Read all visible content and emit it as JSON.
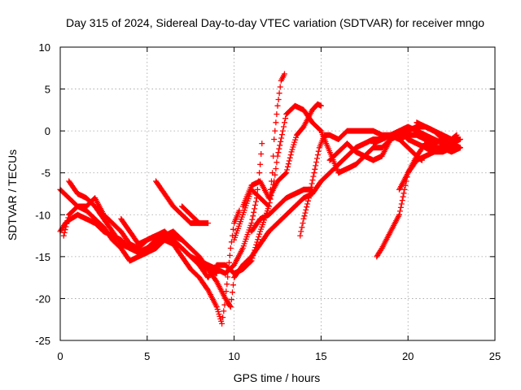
{
  "chart_data": {
    "type": "scatter",
    "title": "Day 315 of 2024, Sidereal Day-to-day VTEC variation (SDTVAR) for receiver mngo",
    "xlabel": "GPS time / hours",
    "ylabel": "SDTVAR / TECUs",
    "xlim": [
      0,
      25
    ],
    "ylim": [
      -25,
      10
    ],
    "xticks": [
      0,
      5,
      10,
      15,
      20,
      25
    ],
    "yticks": [
      -25,
      -20,
      -15,
      -10,
      -5,
      0,
      5,
      10
    ],
    "grid": true,
    "marker": "+",
    "color": "#ff0000",
    "tracks": [
      [
        [
          0.0,
          -12.0
        ],
        [
          0.3,
          -11.0
        ],
        [
          0.6,
          -10.5
        ],
        [
          1.0,
          -10.0
        ],
        [
          1.5,
          -10.5
        ],
        [
          2.0,
          -11.0
        ],
        [
          2.5,
          -12.0
        ],
        [
          3.0,
          -12.5
        ],
        [
          3.5,
          -13.0
        ],
        [
          4.0,
          -14.0
        ],
        [
          4.5,
          -14.5
        ],
        [
          5.0,
          -14.0
        ],
        [
          5.5,
          -13.5
        ],
        [
          6.0,
          -13.0
        ],
        [
          6.5,
          -12.5
        ],
        [
          7.0,
          -13.0
        ],
        [
          7.5,
          -14.0
        ],
        [
          8.0,
          -15.0
        ],
        [
          8.5,
          -16.5
        ],
        [
          9.0,
          -18.0
        ],
        [
          9.5,
          -20.0
        ],
        [
          9.8,
          -21.0
        ],
        [
          10.0,
          -17.5
        ],
        [
          10.5,
          -16.0
        ],
        [
          11.0,
          -15.0
        ],
        [
          11.5,
          -13.5
        ],
        [
          12.0,
          -12.0
        ],
        [
          12.5,
          -11.0
        ],
        [
          13.0,
          -10.0
        ],
        [
          13.5,
          -9.0
        ],
        [
          14.0,
          -8.0
        ],
        [
          14.5,
          -7.5
        ],
        [
          15.0,
          -6.0
        ],
        [
          15.5,
          -5.0
        ],
        [
          16.0,
          -4.0
        ],
        [
          16.5,
          -3.0
        ],
        [
          17.0,
          -2.0
        ],
        [
          17.5,
          -1.5
        ],
        [
          18.0,
          -1.0
        ],
        [
          18.5,
          -1.0
        ],
        [
          19.0,
          -0.5
        ],
        [
          19.5,
          -1.0
        ],
        [
          20.0,
          -0.5
        ],
        [
          20.5,
          -0.5
        ],
        [
          21.0,
          -1.0
        ],
        [
          21.5,
          -1.5
        ],
        [
          22.0,
          -1.0
        ],
        [
          22.5,
          -1.0
        ],
        [
          23.0,
          -1.0
        ]
      ],
      [
        [
          0.0,
          -7.0
        ],
        [
          0.5,
          -8.0
        ],
        [
          1.0,
          -9.0
        ],
        [
          1.5,
          -9.5
        ],
        [
          2.0,
          -10.5
        ],
        [
          2.5,
          -11.5
        ],
        [
          3.0,
          -13.0
        ],
        [
          3.5,
          -14.0
        ],
        [
          4.0,
          -15.5
        ],
        [
          4.5,
          -15.0
        ],
        [
          5.0,
          -14.5
        ],
        [
          5.5,
          -14.0
        ],
        [
          6.0,
          -13.0
        ],
        [
          6.5,
          -13.5
        ],
        [
          7.0,
          -15.0
        ],
        [
          7.5,
          -16.5
        ],
        [
          8.0,
          -17.5
        ],
        [
          8.5,
          -19.0
        ],
        [
          9.0,
          -21.0
        ],
        [
          9.3,
          -23.0
        ],
        [
          9.5,
          -20.0
        ],
        [
          9.8,
          -14.0
        ],
        [
          10.0,
          -11.0
        ],
        [
          10.3,
          -9.5
        ]
      ],
      [
        [
          0.2,
          -12.5
        ],
        [
          0.5,
          -10.0
        ],
        [
          1.0,
          -9.0
        ],
        [
          1.5,
          -9.0
        ],
        [
          2.0,
          -8.0
        ],
        [
          2.5,
          -10.0
        ],
        [
          3.0,
          -11.0
        ],
        [
          3.5,
          -12.0
        ],
        [
          4.0,
          -13.5
        ],
        [
          4.5,
          -14.0
        ],
        [
          5.0,
          -13.0
        ],
        [
          5.5,
          -12.5
        ],
        [
          6.0,
          -12.0
        ],
        [
          6.5,
          -13.0
        ],
        [
          7.0,
          -14.0
        ],
        [
          7.5,
          -15.0
        ],
        [
          8.0,
          -15.5
        ],
        [
          8.5,
          -16.0
        ],
        [
          9.0,
          -16.5
        ],
        [
          9.5,
          -17.0
        ],
        [
          10.0,
          -16.0
        ],
        [
          10.5,
          -14.0
        ],
        [
          11.0,
          -11.0
        ],
        [
          11.3,
          -8.0
        ],
        [
          11.5,
          -4.0
        ],
        [
          11.6,
          -1.5
        ]
      ],
      [
        [
          0.5,
          -6.0
        ],
        [
          1.0,
          -7.5
        ],
        [
          1.5,
          -8.0
        ],
        [
          2.0,
          -9.0
        ],
        [
          2.5,
          -10.5
        ],
        [
          3.0,
          -12.0
        ],
        [
          3.5,
          -13.5
        ],
        [
          4.0,
          -14.0
        ],
        [
          4.5,
          -14.5
        ],
        [
          5.0,
          -14.0
        ],
        [
          5.5,
          -13.0
        ],
        [
          6.0,
          -12.5
        ],
        [
          6.5,
          -12.0
        ],
        [
          7.0,
          -13.0
        ]
      ],
      [
        [
          3.5,
          -10.5
        ],
        [
          4.0,
          -12.0
        ],
        [
          4.5,
          -13.5
        ],
        [
          5.0,
          -13.0
        ],
        [
          5.5,
          -12.5
        ],
        [
          6.0,
          -12.5
        ],
        [
          6.5,
          -13.0
        ],
        [
          7.0,
          -14.0
        ],
        [
          7.5,
          -15.0
        ],
        [
          8.0,
          -16.0
        ],
        [
          8.5,
          -16.5
        ],
        [
          9.0,
          -17.0
        ]
      ],
      [
        [
          5.5,
          -6.0
        ],
        [
          6.0,
          -7.5
        ],
        [
          6.5,
          -9.0
        ],
        [
          7.0,
          -10.0
        ],
        [
          7.5,
          -11.0
        ],
        [
          8.0,
          -11.0
        ]
      ],
      [
        [
          7.0,
          -9.0
        ],
        [
          7.5,
          -10.0
        ],
        [
          8.0,
          -11.0
        ],
        [
          8.5,
          -11.0
        ]
      ],
      [
        [
          8.0,
          -16.0
        ],
        [
          8.5,
          -17.5
        ],
        [
          9.0,
          -16.0
        ],
        [
          9.5,
          -16.0
        ],
        [
          10.0,
          -17.0
        ],
        [
          10.5,
          -16.5
        ],
        [
          11.0,
          -15.5
        ],
        [
          11.5,
          -12.0
        ],
        [
          12.0,
          -9.0
        ],
        [
          12.3,
          -6.0
        ],
        [
          12.5,
          -3.0
        ],
        [
          12.8,
          0.0
        ],
        [
          13.0,
          2.0
        ],
        [
          13.5,
          3.0
        ],
        [
          14.0,
          2.5
        ],
        [
          14.5,
          1.0
        ],
        [
          15.0,
          0.0
        ],
        [
          15.3,
          -1.5
        ],
        [
          15.6,
          -3.0
        ],
        [
          16.0,
          -5.0
        ],
        [
          16.5,
          -4.5
        ],
        [
          17.0,
          -4.0
        ],
        [
          17.5,
          -3.0
        ],
        [
          18.0,
          -2.0
        ],
        [
          18.5,
          -2.0
        ],
        [
          19.0,
          -1.0
        ],
        [
          19.5,
          0.0
        ],
        [
          20.0,
          -1.0
        ],
        [
          20.5,
          -1.5
        ],
        [
          21.0,
          -2.0
        ],
        [
          21.5,
          -2.5
        ],
        [
          22.0,
          -2.5
        ],
        [
          22.5,
          -2.0
        ],
        [
          23.0,
          -2.0
        ]
      ],
      [
        [
          10.0,
          -13.0
        ],
        [
          10.5,
          -10.0
        ],
        [
          11.0,
          -7.0
        ],
        [
          11.5,
          -8.0
        ],
        [
          12.0,
          -9.0
        ],
        [
          12.2,
          -5.0
        ],
        [
          12.3,
          -1.0
        ],
        [
          12.5,
          3.0
        ],
        [
          12.7,
          6.0
        ],
        [
          12.9,
          6.8
        ]
      ],
      [
        [
          10.5,
          -9.0
        ],
        [
          11.0,
          -6.5
        ],
        [
          11.5,
          -6.0
        ],
        [
          12.0,
          -8.0
        ],
        [
          12.5,
          -6.0
        ],
        [
          13.0,
          -5.0
        ],
        [
          13.3,
          -2.5
        ],
        [
          13.6,
          -0.5
        ],
        [
          14.0,
          0.5
        ],
        [
          14.5,
          2.5
        ],
        [
          14.8,
          3.2
        ],
        [
          15.0,
          3.0
        ]
      ],
      [
        [
          11.0,
          -12.0
        ],
        [
          11.5,
          -10.5
        ],
        [
          12.0,
          -10.0
        ],
        [
          12.5,
          -9.0
        ],
        [
          13.0,
          -8.0
        ],
        [
          13.5,
          -7.5
        ],
        [
          14.0,
          -7.0
        ],
        [
          14.5,
          -7.0
        ]
      ],
      [
        [
          13.8,
          -12.5
        ],
        [
          14.0,
          -10.5
        ],
        [
          14.3,
          -8.0
        ],
        [
          14.6,
          -5.0
        ],
        [
          14.9,
          -2.0
        ],
        [
          15.2,
          -0.5
        ],
        [
          15.5,
          -0.5
        ],
        [
          16.0,
          -1.0
        ],
        [
          16.5,
          0.0
        ],
        [
          17.0,
          0.0
        ],
        [
          17.5,
          0.0
        ],
        [
          18.0,
          0.0
        ],
        [
          18.5,
          -0.5
        ],
        [
          19.0,
          -0.5
        ],
        [
          19.5,
          -1.0
        ],
        [
          20.0,
          -2.0
        ],
        [
          20.5,
          -3.0
        ],
        [
          20.8,
          -3.5
        ]
      ],
      [
        [
          15.5,
          -3.5
        ],
        [
          16.0,
          -2.5
        ],
        [
          16.5,
          -1.5
        ],
        [
          17.0,
          -2.5
        ],
        [
          17.5,
          -3.0
        ],
        [
          18.0,
          -3.5
        ],
        [
          18.5,
          -3.0
        ],
        [
          19.0,
          -1.0
        ],
        [
          19.5,
          -0.5
        ],
        [
          20.0,
          0.0
        ],
        [
          20.5,
          0.5
        ],
        [
          21.0,
          0.5
        ],
        [
          21.5,
          0.0
        ],
        [
          22.0,
          -0.5
        ],
        [
          22.5,
          -1.0
        ],
        [
          22.8,
          -0.5
        ]
      ],
      [
        [
          18.2,
          -15.0
        ],
        [
          18.5,
          -14.0
        ],
        [
          19.0,
          -12.0
        ],
        [
          19.5,
          -10.0
        ],
        [
          19.8,
          -7.0
        ],
        [
          20.0,
          -5.0
        ],
        [
          20.5,
          -3.5
        ],
        [
          21.0,
          -3.0
        ],
        [
          21.5,
          -2.5
        ],
        [
          22.0,
          -2.0
        ],
        [
          22.5,
          -2.5
        ],
        [
          23.0,
          -2.0
        ]
      ],
      [
        [
          19.5,
          -7.0
        ],
        [
          20.0,
          -5.0
        ],
        [
          20.5,
          -3.0
        ],
        [
          21.0,
          -1.5
        ],
        [
          21.5,
          -2.0
        ],
        [
          22.0,
          -2.0
        ],
        [
          22.5,
          -1.5
        ],
        [
          23.0,
          -1.0
        ]
      ],
      [
        [
          18.0,
          -1.5
        ],
        [
          18.5,
          -1.0
        ],
        [
          19.0,
          -0.5
        ],
        [
          19.5,
          0.0
        ],
        [
          20.0,
          0.5
        ],
        [
          20.5,
          0.0
        ],
        [
          21.0,
          -0.5
        ],
        [
          21.5,
          -1.0
        ],
        [
          22.0,
          -1.5
        ],
        [
          22.5,
          -1.0
        ]
      ],
      [
        [
          20.5,
          1.0
        ],
        [
          21.0,
          0.5
        ],
        [
          21.5,
          0.0
        ],
        [
          22.0,
          -1.0
        ],
        [
          22.5,
          -1.5
        ],
        [
          23.0,
          -2.0
        ]
      ]
    ]
  }
}
